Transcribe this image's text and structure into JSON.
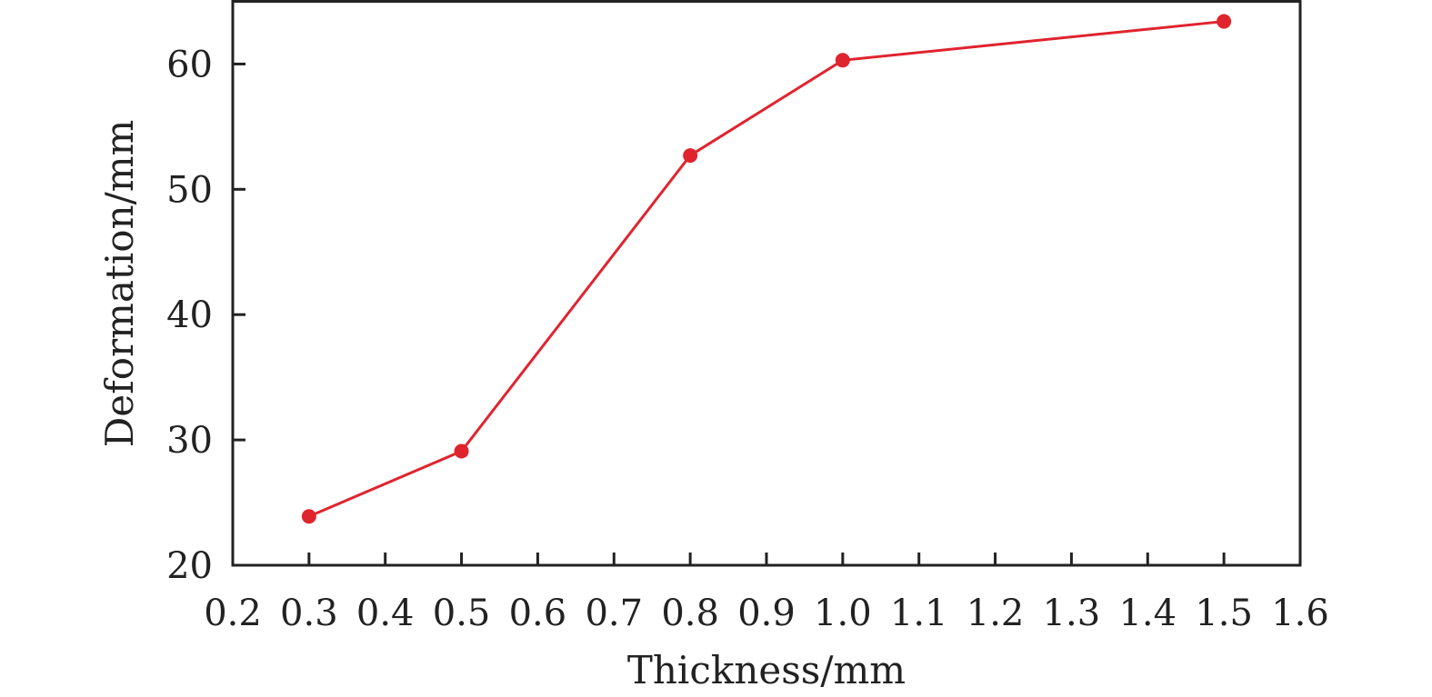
{
  "chart_data": {
    "type": "line",
    "xlabel": "Thickness/mm",
    "ylabel": "Deformation/mm",
    "xlim": [
      0.2,
      1.6
    ],
    "ylim": [
      20,
      65
    ],
    "x_ticks": [
      "0.2",
      "0.3",
      "0.4",
      "0.5",
      "0.6",
      "0.7",
      "0.8",
      "0.9",
      "1.0",
      "1.1",
      "1.2",
      "1.3",
      "1.4",
      "1.5",
      "1.6"
    ],
    "y_ticks": [
      "20",
      "30",
      "40",
      "50",
      "60"
    ],
    "grid": false,
    "series": [
      {
        "color": "#e0242e",
        "marker": "circle",
        "x": [
          0.3,
          0.5,
          0.8,
          1.0,
          1.5
        ],
        "y": [
          23.9,
          29.1,
          52.7,
          60.3,
          63.4
        ]
      }
    ]
  }
}
